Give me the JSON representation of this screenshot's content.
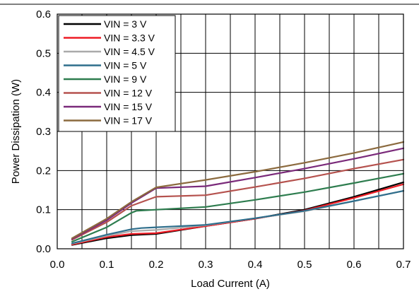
{
  "chart_data": {
    "type": "line",
    "title": "",
    "xlabel": "Load Current (A)",
    "ylabel": "Power Dissipation (W)",
    "xlim": [
      0,
      0.7
    ],
    "ylim": [
      0,
      0.6
    ],
    "x_ticks": [
      "0.0",
      "0.1",
      "0.2",
      "0.3",
      "0.4",
      "0.5",
      "0.6",
      "0.7"
    ],
    "y_ticks": [
      "0.0",
      "0.1",
      "0.2",
      "0.3",
      "0.4",
      "0.5",
      "0.6"
    ],
    "grid": true,
    "legend_position": "top-left",
    "series": [
      {
        "name": "VIN = 3 V",
        "color": "#000000",
        "x": [
          0.03,
          0.1,
          0.15,
          0.2,
          0.3,
          0.4,
          0.5,
          0.6,
          0.7
        ],
        "y": [
          0.01,
          0.027,
          0.035,
          0.038,
          0.058,
          0.077,
          0.1,
          0.133,
          0.17
        ]
      },
      {
        "name": "VIN = 3.3 V",
        "color": "#ee1c25",
        "x": [
          0.03,
          0.1,
          0.15,
          0.2,
          0.3,
          0.4,
          0.5,
          0.6,
          0.7
        ],
        "y": [
          0.011,
          0.03,
          0.038,
          0.04,
          0.058,
          0.077,
          0.098,
          0.13,
          0.165
        ]
      },
      {
        "name": "VIN = 4.5 V",
        "color": "#aaaaaa",
        "x": [
          0.03,
          0.1,
          0.15,
          0.2,
          0.3,
          0.4,
          0.5,
          0.6,
          0.7
        ],
        "y": [
          0.013,
          0.033,
          0.045,
          0.048,
          0.06,
          0.078,
          0.096,
          0.122,
          0.148
        ]
      },
      {
        "name": "VIN = 5 V",
        "color": "#2e6e8c",
        "x": [
          0.03,
          0.1,
          0.15,
          0.17,
          0.2,
          0.3,
          0.4,
          0.5,
          0.6,
          0.7
        ],
        "y": [
          0.014,
          0.036,
          0.05,
          0.053,
          0.055,
          0.061,
          0.078,
          0.097,
          0.122,
          0.148
        ]
      },
      {
        "name": "VIN = 9 V",
        "color": "#2e7d4f",
        "x": [
          0.03,
          0.1,
          0.15,
          0.16,
          0.2,
          0.3,
          0.4,
          0.5,
          0.6,
          0.7
        ],
        "y": [
          0.018,
          0.055,
          0.092,
          0.097,
          0.1,
          0.107,
          0.125,
          0.145,
          0.168,
          0.192
        ]
      },
      {
        "name": "VIN = 12 V",
        "color": "#b5524e",
        "x": [
          0.03,
          0.1,
          0.15,
          0.2,
          0.3,
          0.4,
          0.5,
          0.6,
          0.7
        ],
        "y": [
          0.023,
          0.068,
          0.11,
          0.133,
          0.137,
          0.158,
          0.18,
          0.205,
          0.228
        ]
      },
      {
        "name": "VIN = 15 V",
        "color": "#7a2a7a",
        "x": [
          0.03,
          0.1,
          0.15,
          0.2,
          0.3,
          0.4,
          0.5,
          0.6,
          0.7
        ],
        "y": [
          0.025,
          0.073,
          0.117,
          0.155,
          0.16,
          0.182,
          0.205,
          0.23,
          0.257
        ]
      },
      {
        "name": "VIN = 17 V",
        "color": "#8b6a3e",
        "x": [
          0.03,
          0.1,
          0.15,
          0.2,
          0.3,
          0.4,
          0.5,
          0.6,
          0.7
        ],
        "y": [
          0.027,
          0.077,
          0.12,
          0.157,
          0.176,
          0.197,
          0.22,
          0.245,
          0.273
        ]
      }
    ]
  }
}
